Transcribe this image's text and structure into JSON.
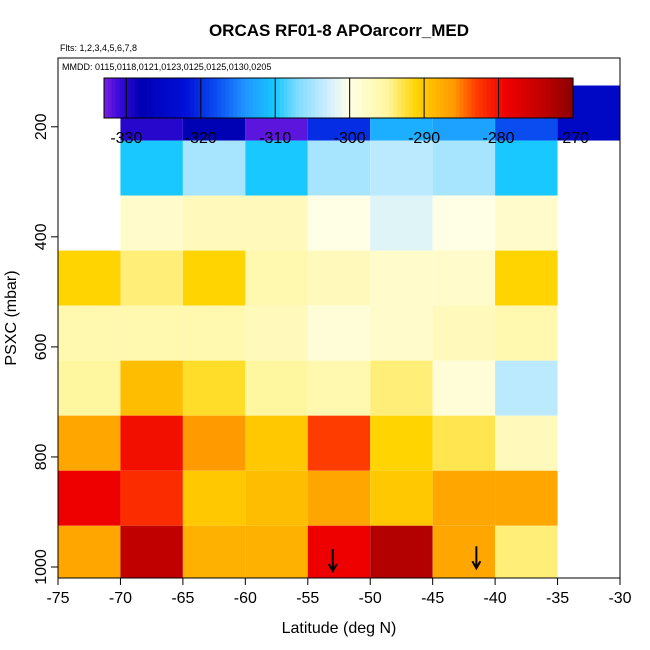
{
  "chart_data": {
    "type": "heatmap",
    "title": "ORCAS RF01-8 APOarcorr_MED",
    "flights_text": "Flts: 1,2,3,4,5,6,7,8",
    "mmdd_text": "MMDD: 0115,0118,0121,0123,0125,0125,0130,0205",
    "xlabel": "Latitude (deg N)",
    "ylabel": "PSXC (mbar)",
    "xlim": [
      -75,
      -30
    ],
    "ylim": [
      1020,
      75
    ],
    "x_ticks": [
      -75,
      -70,
      -65,
      -60,
      -55,
      -50,
      -45,
      -40,
      -35,
      -30
    ],
    "y_ticks": [
      200,
      400,
      600,
      800,
      1000
    ],
    "colorbar": {
      "range": [
        -333,
        -270
      ],
      "ticks": [
        -330,
        -320,
        -310,
        -300,
        -290,
        -280,
        -270
      ],
      "stops": [
        {
          "v": -333,
          "c": "#7b1fe0"
        },
        {
          "v": -331,
          "c": "#3a0bd8"
        },
        {
          "v": -328,
          "c": "#0000b4"
        },
        {
          "v": -322,
          "c": "#0010d8"
        },
        {
          "v": -318,
          "c": "#0a4cf0"
        },
        {
          "v": -314,
          "c": "#1f96ff"
        },
        {
          "v": -310,
          "c": "#18c8ff"
        },
        {
          "v": -307,
          "c": "#7fdcff"
        },
        {
          "v": -303,
          "c": "#cfeeff"
        },
        {
          "v": -300,
          "c": "#ffffe6"
        },
        {
          "v": -295,
          "c": "#fff6a0"
        },
        {
          "v": -291,
          "c": "#ffd400"
        },
        {
          "v": -286,
          "c": "#ff9a00"
        },
        {
          "v": -283,
          "c": "#ff3c00"
        },
        {
          "v": -279,
          "c": "#ee0000"
        },
        {
          "v": -274,
          "c": "#c00000"
        },
        {
          "v": -270,
          "c": "#8a0000"
        }
      ]
    },
    "x_edges": [
      -75,
      -70,
      -65,
      -60,
      -55,
      -50,
      -45,
      -40,
      -35,
      -30
    ],
    "y_edges": [
      125,
      225,
      325,
      425,
      525,
      625,
      725,
      825,
      925,
      1025
    ],
    "cells": [
      [
        null,
        -330,
        -328,
        -332,
        -320,
        -312,
        -313,
        -318,
        -325
      ],
      [
        null,
        -310,
        -305,
        -310,
        -305,
        -304,
        -305,
        -310,
        null
      ],
      [
        null,
        -298,
        -297,
        -297,
        -300,
        -302,
        -300,
        -298,
        null
      ],
      [
        -291,
        -294,
        -291,
        -296,
        -297,
        -298,
        -298,
        -291,
        null
      ],
      [
        -296,
        -296,
        -296,
        -297,
        -299,
        -298,
        -297,
        -296,
        null
      ],
      [
        -295,
        -289,
        -292,
        -295,
        -296,
        -294,
        -299,
        -304,
        null
      ],
      [
        -287,
        -280,
        -286,
        -290,
        -283,
        -291,
        -293,
        -297,
        null
      ],
      [
        -279,
        -282,
        -290,
        -289,
        -287,
        -290,
        -287,
        -287,
        null
      ],
      [
        -287,
        -274,
        -288,
        -288,
        -279,
        -273,
        -287,
        -294,
        null
      ]
    ],
    "markers": [
      {
        "x": -53,
        "y": 1000
      },
      {
        "x": -41.5,
        "y": 995
      }
    ]
  }
}
